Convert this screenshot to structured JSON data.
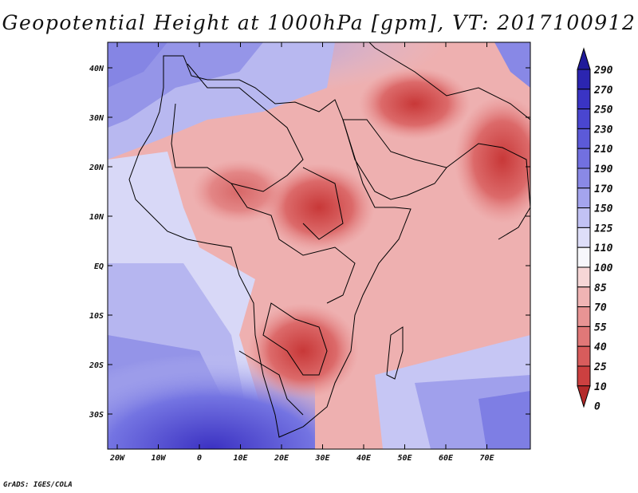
{
  "title": "Geopotential Height at 1000hPa [gpm], VT: 2017100912",
  "footer": "GrADS: IGES/COLA",
  "lat_labels": [
    "40N",
    "30N",
    "20N",
    "10N",
    "EQ",
    "10S",
    "20S",
    "30S"
  ],
  "lon_labels": [
    "20W",
    "10W",
    "0",
    "10E",
    "20E",
    "30E",
    "40E",
    "50E",
    "60E",
    "70E"
  ],
  "colorbar": {
    "levels": [
      "290",
      "270",
      "250",
      "230",
      "210",
      "190",
      "170",
      "150",
      "125",
      "110",
      "100",
      "85",
      "70",
      "55",
      "40",
      "25",
      "10",
      "0"
    ],
    "colors": [
      "#1f1a9a",
      "#2b25b0",
      "#3a34c4",
      "#4a46d0",
      "#5c5ad8",
      "#7270e0",
      "#8a89e6",
      "#a4a4ee",
      "#c2c2f4",
      "#dedef9",
      "#f7f7fb",
      "#f6d6d6",
      "#f0b4b4",
      "#e89494",
      "#e07878",
      "#d85c5c",
      "#cc4040",
      "#b42a2a"
    ]
  }
}
